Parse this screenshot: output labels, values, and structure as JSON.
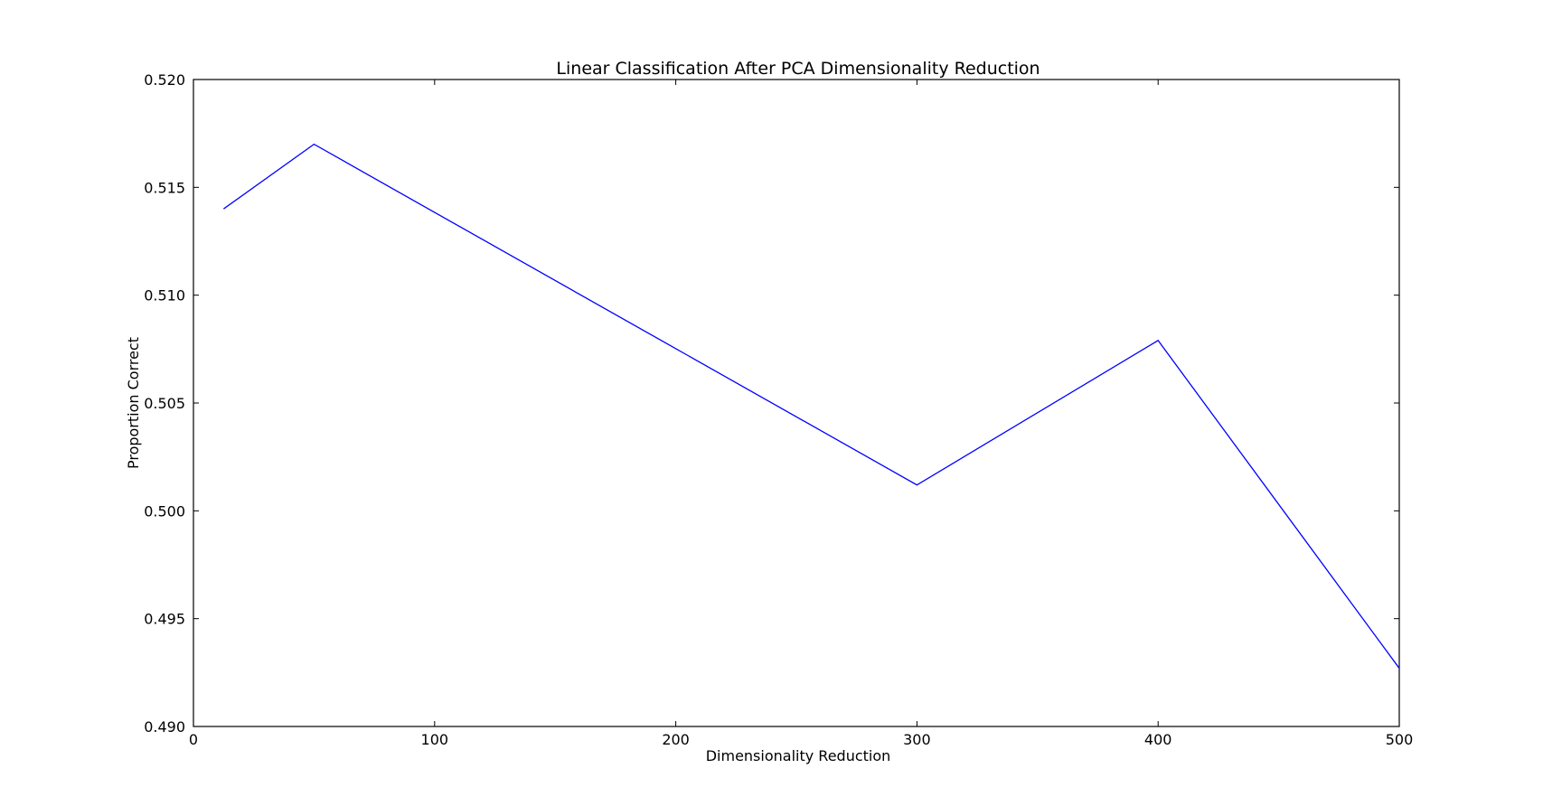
{
  "chart_data": {
    "type": "line",
    "title": "Linear Classification After PCA Dimensionality Reduction",
    "xlabel": "Dimensionality Reduction",
    "ylabel": "Proportion Correct",
    "xlim": [
      0,
      500
    ],
    "ylim": [
      0.49,
      0.52
    ],
    "xticks": [
      0,
      100,
      200,
      300,
      400,
      500
    ],
    "xtick_labels": [
      "0",
      "100",
      "200",
      "300",
      "400",
      "500"
    ],
    "yticks": [
      0.49,
      0.495,
      0.5,
      0.505,
      0.51,
      0.515,
      0.52
    ],
    "ytick_labels": [
      "0.490",
      "0.495",
      "0.500",
      "0.505",
      "0.510",
      "0.515",
      "0.520"
    ],
    "grid": false,
    "series": [
      {
        "color": "#0000ff",
        "x": [
          12.5,
          50,
          300,
          400,
          500
        ],
        "y": [
          0.514,
          0.517,
          0.5012,
          0.5079,
          0.4927
        ]
      }
    ]
  }
}
